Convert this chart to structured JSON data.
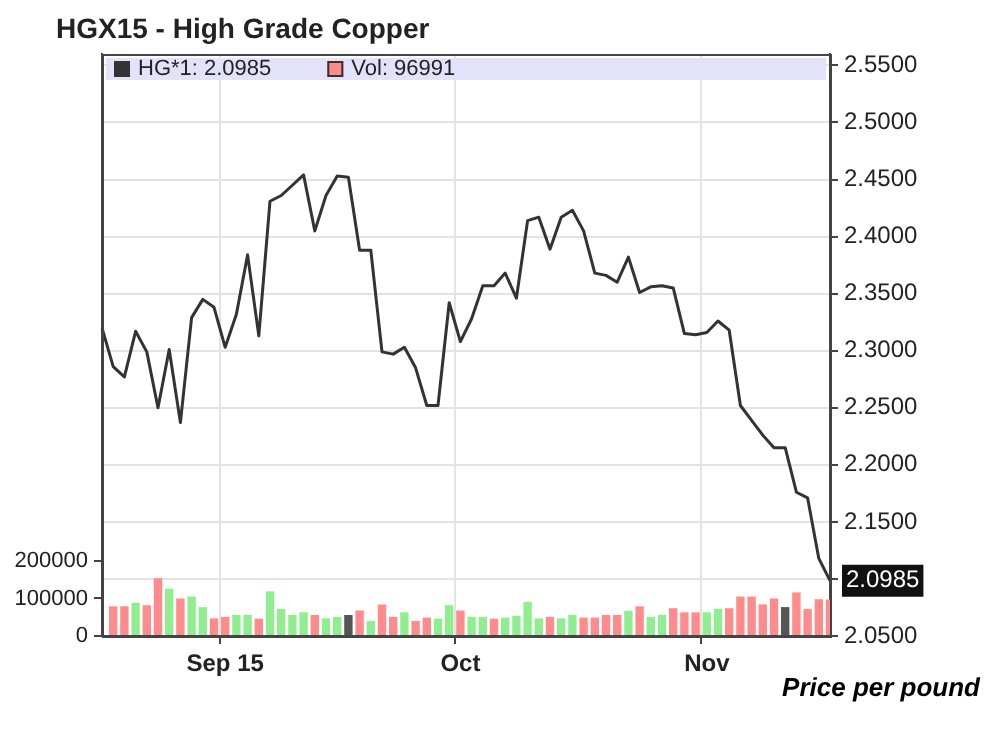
{
  "chart_data": {
    "type": "line",
    "title": "HGX15 - High Grade Copper",
    "categories": [
      null,
      null,
      null,
      null,
      null,
      null,
      null,
      null,
      null,
      null,
      null,
      "Sep 15",
      null,
      null,
      null,
      null,
      null,
      null,
      null,
      null,
      null,
      null,
      null,
      null,
      null,
      null,
      null,
      null,
      null,
      null,
      null,
      null,
      "Oct",
      null,
      null,
      null,
      null,
      null,
      null,
      null,
      null,
      null,
      null,
      null,
      null,
      null,
      null,
      null,
      null,
      null,
      null,
      null,
      null,
      null,
      "Nov",
      null,
      null,
      null,
      null,
      null,
      null,
      null,
      null,
      null,
      null,
      null
    ],
    "series": [
      {
        "name": "HG*1: 2.0985",
        "axis": "y",
        "color": "#333333",
        "values": [
          2.32,
          2.286,
          2.277,
          2.317,
          2.299,
          2.25,
          2.301,
          2.237,
          2.329,
          2.345,
          2.338,
          2.303,
          2.332,
          2.384,
          2.313,
          2.431,
          2.436,
          2.445,
          2.454,
          2.405,
          2.436,
          2.453,
          2.452,
          2.388,
          2.388,
          2.299,
          2.297,
          2.303,
          2.285,
          2.252,
          2.252,
          2.342,
          2.308,
          2.328,
          2.357,
          2.357,
          2.368,
          2.346,
          2.414,
          2.417,
          2.389,
          2.417,
          2.423,
          2.405,
          2.368,
          2.366,
          2.36,
          2.382,
          2.351,
          2.356,
          2.357,
          2.355,
          2.315,
          2.314,
          2.316,
          2.326,
          2.318,
          2.252,
          2.239,
          2.226,
          2.215,
          2.215,
          2.176,
          2.171,
          2.118,
          2.0985
        ]
      },
      {
        "name": "Vol: 96991",
        "type": "bar",
        "axis": "y2",
        "color": "#ff8c8c",
        "values": [
          null,
          79000,
          79000,
          88000,
          82000,
          154000,
          126000,
          100000,
          105000,
          77000,
          47000,
          51000,
          56000,
          56000,
          46000,
          119000,
          72000,
          56000,
          63000,
          56000,
          47000,
          51000,
          56000,
          68000,
          40000,
          84000,
          51000,
          63000,
          40000,
          49000,
          46000,
          82000,
          68000,
          51000,
          51000,
          46000,
          49000,
          54000,
          91000,
          47000,
          51000,
          47000,
          56000,
          49000,
          49000,
          56000,
          56000,
          67000,
          79000,
          51000,
          56000,
          74000,
          63000,
          63000,
          63000,
          72000,
          74000,
          105000,
          105000,
          84000,
          100000,
          77000,
          116000,
          72000,
          98000,
          96991
        ],
        "colors": [
          null,
          "#ff8c8c",
          "#ff8c8c",
          "#90ee90",
          "#ff8c8c",
          "#ff8c8c",
          "#90ee90",
          "#ff8c8c",
          "#90ee90",
          "#90ee90",
          "#ff8c8c",
          "#ff8c8c",
          "#90ee90",
          "#90ee90",
          "#ff8c8c",
          "#90ee90",
          "#90ee90",
          "#90ee90",
          "#90ee90",
          "#ff8c8c",
          "#90ee90",
          "#90ee90",
          "#555555",
          "#ff8c8c",
          "#90ee90",
          "#ff8c8c",
          "#ff8c8c",
          "#90ee90",
          "#ff8c8c",
          "#ff8c8c",
          "#90ee90",
          "#90ee90",
          "#ff8c8c",
          "#90ee90",
          "#90ee90",
          "#ff8c8c",
          "#90ee90",
          "#90ee90",
          "#90ee90",
          "#90ee90",
          "#ff8c8c",
          "#90ee90",
          "#90ee90",
          "#ff8c8c",
          "#ff8c8c",
          "#ff8c8c",
          "#ff8c8c",
          "#90ee90",
          "#ff8c8c",
          "#90ee90",
          "#90ee90",
          "#ff8c8c",
          "#ff8c8c",
          "#ff8c8c",
          "#90ee90",
          "#90ee90",
          "#ff8c8c",
          "#ff8c8c",
          "#ff8c8c",
          "#ff8c8c",
          "#ff8c8c",
          "#555555",
          "#ff8c8c",
          "#ff8c8c",
          "#ff8c8c",
          "#ff8c8c"
        ]
      }
    ],
    "ylim": [
      2.05,
      2.56
    ],
    "yticks": [
      {
        "value": 2.05,
        "label": "2.0500"
      },
      {
        "value": 2.1,
        "label": null
      },
      {
        "value": 2.15,
        "label": "2.1500"
      },
      {
        "value": 2.2,
        "label": "2.2000"
      },
      {
        "value": 2.25,
        "label": "2.2500"
      },
      {
        "value": 2.3,
        "label": "2.3000"
      },
      {
        "value": 2.35,
        "label": "2.3500"
      },
      {
        "value": 2.4,
        "label": "2.4000"
      },
      {
        "value": 2.45,
        "label": "2.4500"
      },
      {
        "value": 2.5,
        "label": "2.5000"
      },
      {
        "value": 2.55,
        "label": "2.5500"
      }
    ],
    "y2lim": [
      0,
      1550000
    ],
    "y2ticks": [
      0,
      100000,
      200000
    ],
    "annotations": [
      "2.0985",
      "Price per pound"
    ],
    "grid": true,
    "legend": "top left",
    "marker": "none",
    "line_style": "solid"
  }
}
